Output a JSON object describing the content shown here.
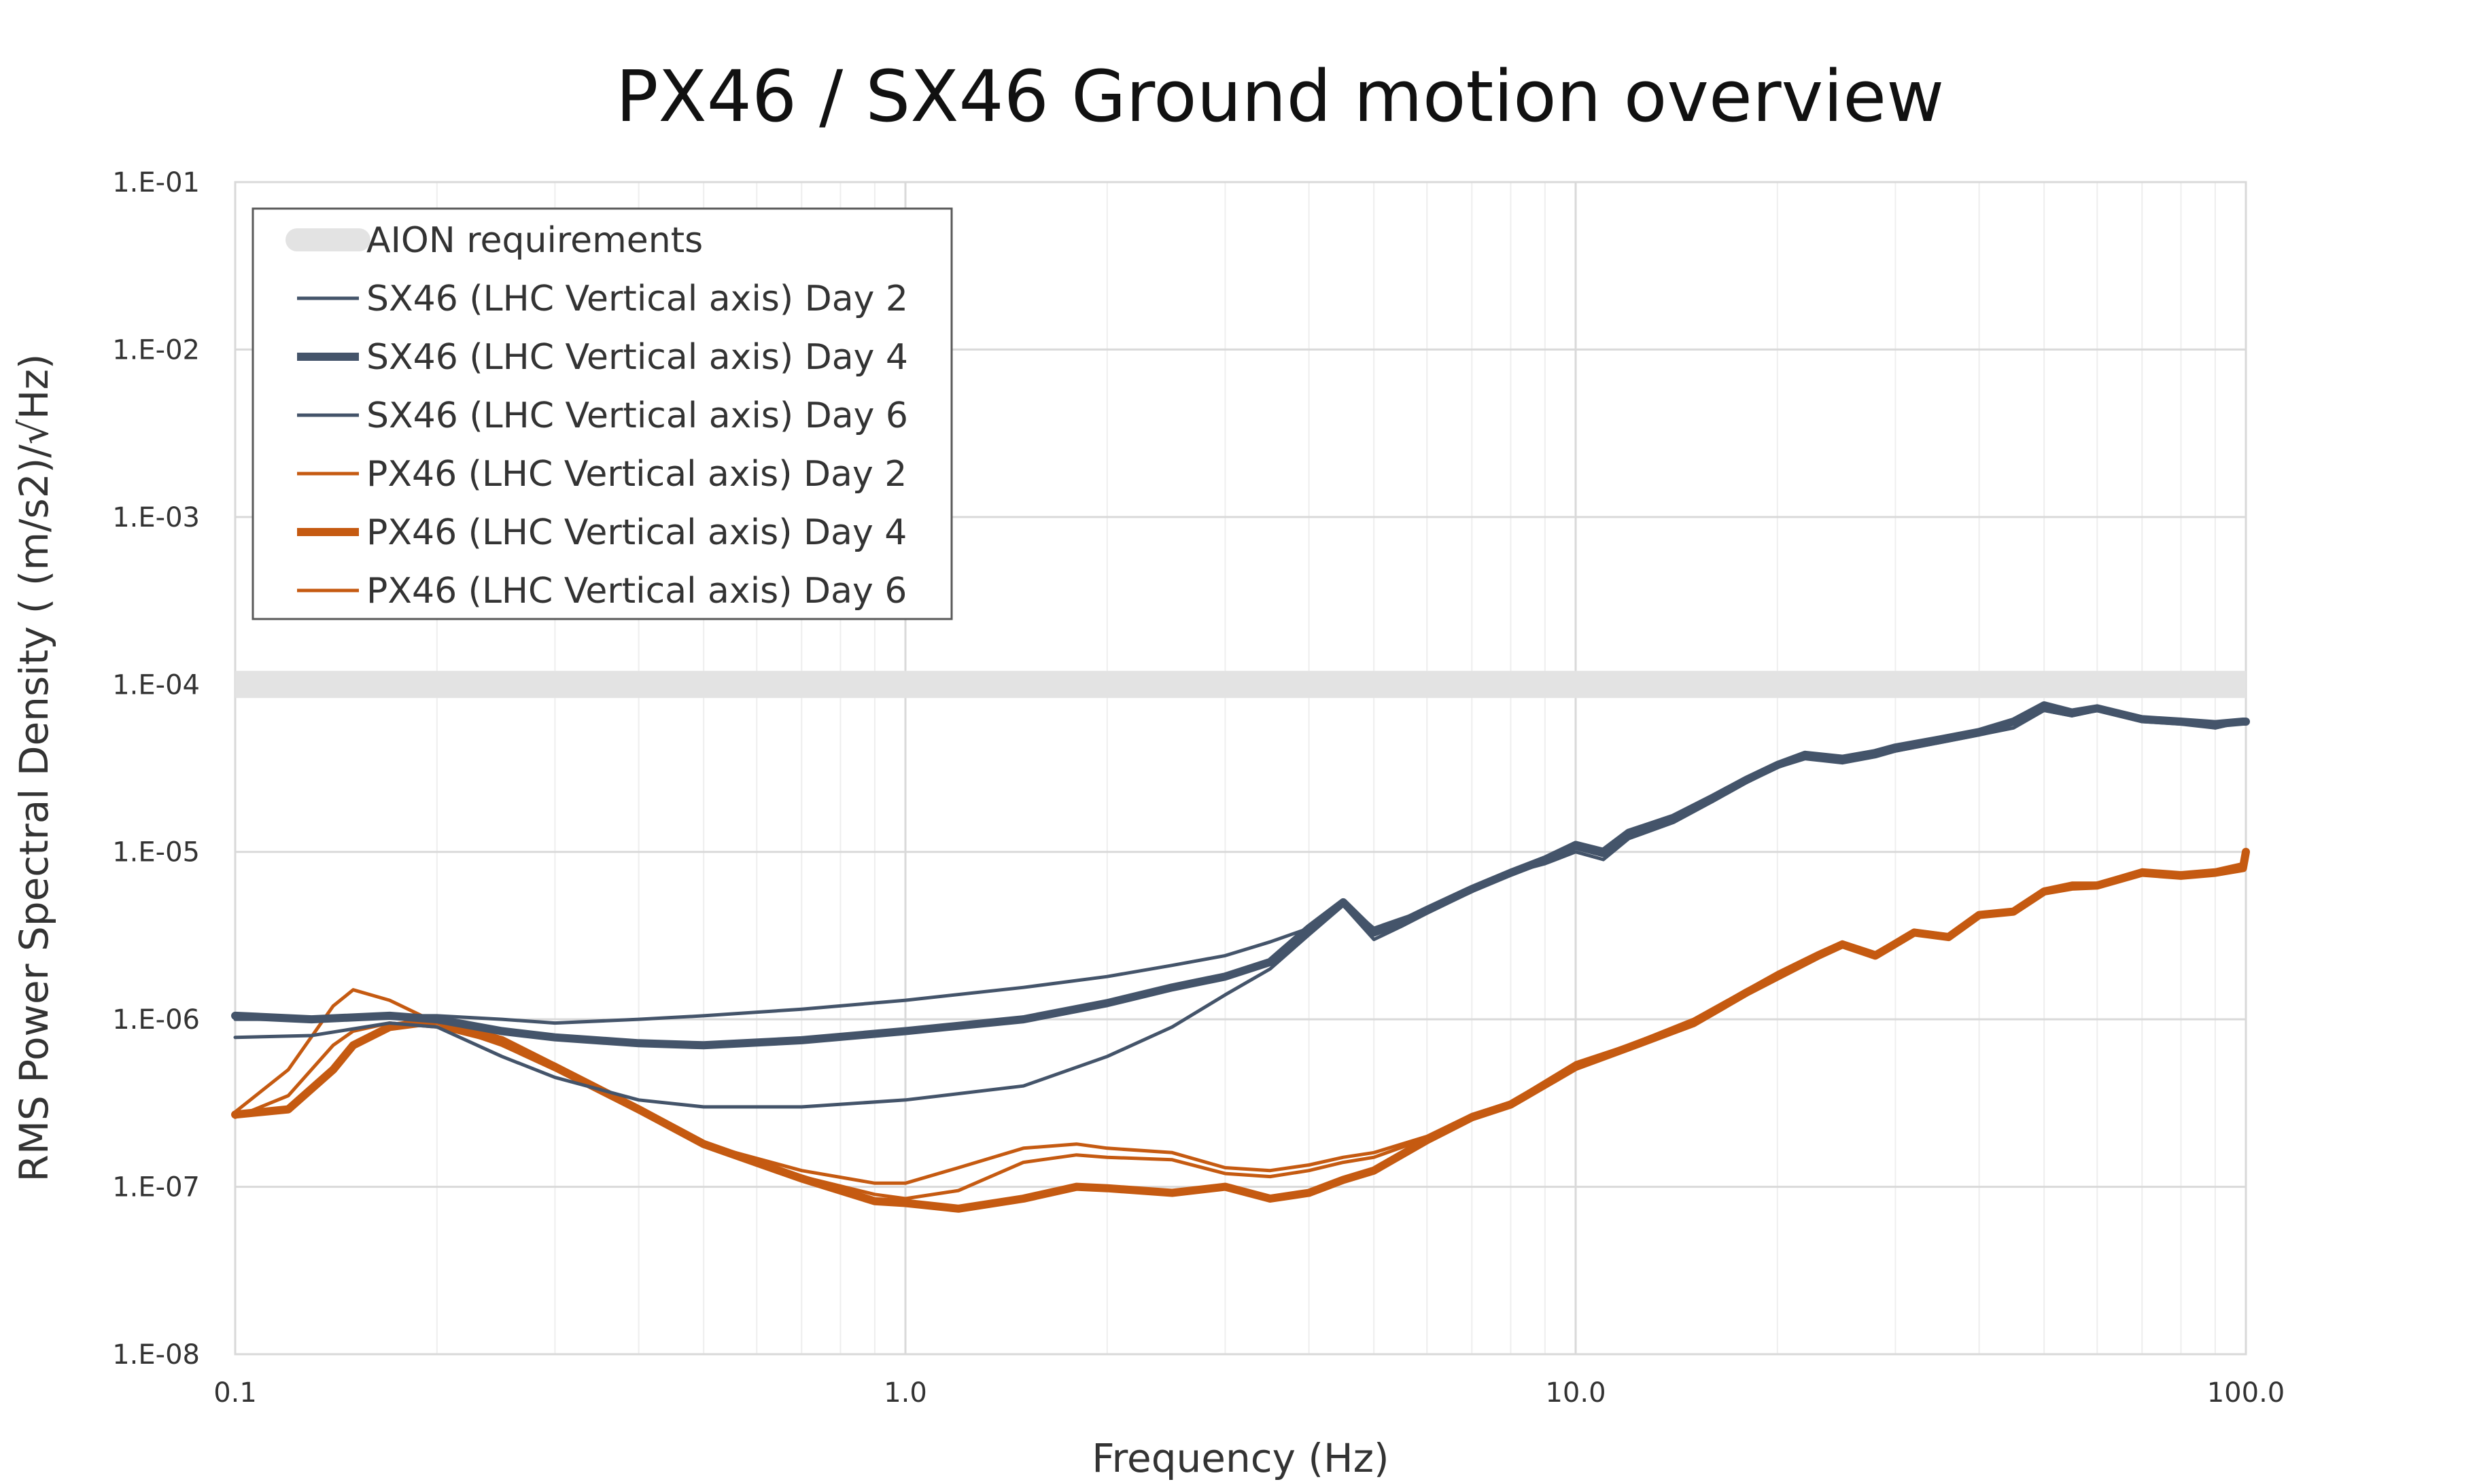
{
  "chart_data": {
    "type": "line",
    "title": "PX46 / SX46 Ground motion overview",
    "xlabel": "Frequency  (Hz)",
    "ylabel": "RMS Power Spectral Density  (  (m/s2)/√Hz)",
    "x_scale": "log",
    "y_scale": "log",
    "xlim": [
      0.1,
      100
    ],
    "ylim": [
      1e-08,
      0.1
    ],
    "x_ticks": [
      0.1,
      1,
      10,
      100
    ],
    "x_tick_labels": [
      "0.1",
      "1.0",
      "10.0",
      "100.0"
    ],
    "y_ticks": [
      0.1,
      0.01,
      0.001,
      0.0001,
      1e-05,
      1e-06,
      1e-07,
      1e-08
    ],
    "y_tick_labels": [
      "1.E-01",
      "1.E-02",
      "1.E-03",
      "1.E-04",
      "1.E-05",
      "1.E-06",
      "1.E-07",
      "1.E-08"
    ],
    "grid": true,
    "legend_position": "top-left",
    "colors": {
      "sx": "#44546a",
      "px": "#c55a11",
      "requirement": "#e3e3e3"
    },
    "series": [
      {
        "name": "AION requirements",
        "color": "#e3e3e3",
        "style": "band",
        "x": [
          0.1,
          100
        ],
        "y": [
          0.0001,
          0.0001
        ]
      },
      {
        "name": "SX46 (LHC Vertical axis) Day 2",
        "color": "#44546a",
        "style": "thin",
        "x": [
          0.1,
          0.13,
          0.17,
          0.2,
          0.25,
          0.3,
          0.4,
          0.5,
          0.7,
          1.0,
          1.5,
          2.0,
          2.5,
          3.0,
          3.5,
          4.0,
          4.5,
          5.0,
          5.5,
          6.0,
          7.0,
          8.0,
          9.0,
          10.0,
          11.0,
          12.0,
          14.0,
          16.0,
          18.0,
          20.0,
          22.0,
          25.0,
          28.0,
          30.0,
          35.0,
          40.0,
          45.0,
          50.0,
          55.0,
          60.0,
          70.0,
          80.0,
          90.0,
          99.0,
          100.0
        ],
        "y": [
          1e-06,
          1e-06,
          1.05e-06,
          1.05e-06,
          1e-06,
          9.5e-07,
          1e-06,
          1.05e-06,
          1.15e-06,
          1.3e-06,
          1.55e-06,
          1.8e-06,
          2.1e-06,
          2.4e-06,
          2.9e-06,
          3.5e-06,
          5e-06,
          3.5e-06,
          4e-06,
          4.5e-06,
          6e-06,
          7.5e-06,
          8.5e-06,
          1e-05,
          9e-06,
          1.2e-05,
          1.5e-05,
          2e-05,
          2.6e-05,
          3.2e-05,
          3.7e-05,
          3.5e-05,
          3.8e-05,
          4e-05,
          4.5e-05,
          5e-05,
          5.5e-05,
          7e-05,
          6.5e-05,
          7e-05,
          6e-05,
          6e-05,
          5.5e-05,
          6e-05,
          6e-05
        ]
      },
      {
        "name": "SX46 (LHC Vertical axis) Day 4",
        "color": "#44546a",
        "style": "thick",
        "x": [
          0.1,
          0.13,
          0.17,
          0.2,
          0.25,
          0.3,
          0.4,
          0.5,
          0.7,
          1.0,
          1.5,
          2.0,
          2.5,
          3.0,
          3.5,
          4.0,
          4.5,
          5.0,
          5.5,
          6.0,
          7.0,
          8.0,
          9.0,
          10.0,
          11.0,
          12.0,
          14.0,
          16.0,
          18.0,
          20.0,
          22.0,
          25.0,
          28.0,
          30.0,
          35.0,
          40.0,
          45.0,
          50.0,
          55.0,
          60.0,
          70.0,
          80.0,
          90.0,
          99.0,
          100.0
        ],
        "y": [
          1.05e-06,
          1e-06,
          1.05e-06,
          1e-06,
          8.5e-07,
          7.8e-07,
          7.2e-07,
          7e-07,
          7.5e-07,
          8.5e-07,
          1e-06,
          1.25e-06,
          1.55e-06,
          1.8e-06,
          2.2e-06,
          3.5e-06,
          5e-06,
          3.3e-06,
          3.8e-06,
          4.5e-06,
          6e-06,
          7.5e-06,
          9e-06,
          1.1e-05,
          1e-05,
          1.3e-05,
          1.6e-05,
          2.1e-05,
          2.7e-05,
          3.3e-05,
          3.8e-05,
          3.6e-05,
          3.9e-05,
          4.2e-05,
          4.7e-05,
          5.2e-05,
          6e-05,
          7.5e-05,
          6.8e-05,
          7.2e-05,
          6.2e-05,
          6e-05,
          5.8e-05,
          6e-05,
          6e-05
        ]
      },
      {
        "name": "SX46 (LHC Vertical axis) Day 6",
        "color": "#44546a",
        "style": "thin",
        "x": [
          0.1,
          0.13,
          0.17,
          0.2,
          0.25,
          0.3,
          0.4,
          0.5,
          0.7,
          1.0,
          1.5,
          2.0,
          2.5,
          3.0,
          3.5,
          4.0,
          4.5,
          5.0,
          5.5,
          6.0,
          7.0,
          8.0,
          9.0,
          10.0,
          11.0,
          12.0,
          14.0,
          16.0,
          18.0,
          20.0,
          22.0,
          25.0,
          28.0,
          30.0,
          35.0,
          40.0,
          45.0,
          50.0,
          55.0,
          60.0,
          70.0,
          80.0,
          90.0,
          99.0,
          100.0
        ],
        "y": [
          7.8e-07,
          8e-07,
          9.5e-07,
          9e-07,
          6e-07,
          4.5e-07,
          3.3e-07,
          3e-07,
          3e-07,
          3.3e-07,
          4e-07,
          6e-07,
          9e-07,
          1.4e-06,
          2e-06,
          3.2e-06,
          4.8e-06,
          3e-06,
          3.6e-06,
          4.3e-06,
          5.8e-06,
          7.3e-06,
          8.8e-06,
          1.05e-05,
          9.5e-06,
          1.25e-05,
          1.55e-05,
          2e-05,
          2.6e-05,
          3.2e-05,
          3.6e-05,
          3.4e-05,
          3.7e-05,
          4e-05,
          4.5e-05,
          5e-05,
          5.8e-05,
          7e-05,
          6.5e-05,
          7e-05,
          6e-05,
          5.8e-05,
          5.5e-05,
          6e-05,
          6e-05
        ]
      },
      {
        "name": "PX46 (LHC Vertical axis) Day 2",
        "color": "#c55a11",
        "style": "thin",
        "x": [
          0.1,
          0.12,
          0.14,
          0.15,
          0.17,
          0.2,
          0.25,
          0.3,
          0.4,
          0.5,
          0.7,
          0.9,
          1.0,
          1.2,
          1.5,
          1.8,
          2.0,
          2.5,
          3.0,
          3.5,
          4.0,
          4.5,
          5.0,
          6.0,
          7.0,
          8.0,
          10.0,
          12.0,
          15.0,
          18.0,
          20.0,
          23.0,
          25.0,
          28.0,
          32.0,
          36.0,
          40.0,
          45.0,
          50.0,
          55.0,
          60.0,
          70.0,
          80.0,
          90.0,
          99.0,
          100.0
        ],
        "y": [
          2.8e-07,
          5e-07,
          1.2e-06,
          1.5e-06,
          1.3e-06,
          9.5e-07,
          7e-07,
          5e-07,
          2.8e-07,
          1.8e-07,
          1.25e-07,
          1.05e-07,
          1.05e-07,
          1.3e-07,
          1.7e-07,
          1.8e-07,
          1.7e-07,
          1.6e-07,
          1.3e-07,
          1.25e-07,
          1.35e-07,
          1.5e-07,
          1.6e-07,
          2e-07,
          2.7e-07,
          3.2e-07,
          5.5e-07,
          7e-07,
          1e-06,
          1.5e-06,
          1.9e-06,
          2.5e-06,
          2.9e-06,
          2.5e-06,
          3.4e-06,
          3.2e-06,
          4.3e-06,
          4.5e-06,
          6e-06,
          6.5e-06,
          6.5e-06,
          7.8e-06,
          7.5e-06,
          7.8e-06,
          8.5e-06,
          1e-05
        ]
      },
      {
        "name": "PX46 (LHC Vertical axis) Day 4",
        "color": "#c55a11",
        "style": "thick",
        "x": [
          0.1,
          0.12,
          0.14,
          0.15,
          0.17,
          0.2,
          0.25,
          0.3,
          0.4,
          0.5,
          0.7,
          0.9,
          1.0,
          1.2,
          1.5,
          1.8,
          2.0,
          2.5,
          3.0,
          3.5,
          4.0,
          4.5,
          5.0,
          6.0,
          7.0,
          8.0,
          10.0,
          12.0,
          15.0,
          18.0,
          20.0,
          23.0,
          25.0,
          28.0,
          32.0,
          36.0,
          40.0,
          45.0,
          50.0,
          55.0,
          60.0,
          70.0,
          80.0,
          90.0,
          99.0,
          100.0
        ],
        "y": [
          2.7e-07,
          2.9e-07,
          5e-07,
          7e-07,
          9e-07,
          9.8e-07,
          7.5e-07,
          5.2e-07,
          2.9e-07,
          1.8e-07,
          1.12e-07,
          8.2e-08,
          8e-08,
          7.4e-08,
          8.5e-08,
          1e-07,
          9.8e-08,
          9.2e-08,
          1e-07,
          8.5e-08,
          9.2e-08,
          1.1e-07,
          1.25e-07,
          1.9e-07,
          2.6e-07,
          3.1e-07,
          5.2e-07,
          6.8e-07,
          9.5e-07,
          1.45e-06,
          1.8e-06,
          2.4e-06,
          2.8e-06,
          2.4e-06,
          3.3e-06,
          3.1e-06,
          4.2e-06,
          4.4e-06,
          5.8e-06,
          6.2e-06,
          6.3e-06,
          7.5e-06,
          7.2e-06,
          7.5e-06,
          8e-06,
          1e-05
        ]
      },
      {
        "name": "PX46 (LHC Vertical axis) Day 6",
        "color": "#c55a11",
        "style": "thin",
        "x": [
          0.1,
          0.12,
          0.14,
          0.15,
          0.17,
          0.2,
          0.25,
          0.3,
          0.4,
          0.5,
          0.7,
          0.9,
          1.0,
          1.2,
          1.5,
          1.8,
          2.0,
          2.5,
          3.0,
          3.5,
          4.0,
          4.5,
          5.0,
          6.0,
          7.0,
          8.0,
          10.0,
          12.0,
          15.0,
          18.0,
          20.0,
          23.0,
          25.0,
          28.0,
          32.0,
          36.0,
          40.0,
          45.0,
          50.0,
          55.0,
          60.0,
          70.0,
          80.0,
          90.0,
          99.0,
          100.0
        ],
        "y": [
          2.6e-07,
          3.5e-07,
          7e-07,
          8.5e-07,
          9.5e-07,
          9e-07,
          7.2e-07,
          5.4e-07,
          3e-07,
          1.85e-07,
          1.15e-07,
          9e-08,
          8.5e-08,
          9.5e-08,
          1.4e-07,
          1.55e-07,
          1.5e-07,
          1.45e-07,
          1.2e-07,
          1.15e-07,
          1.25e-07,
          1.4e-07,
          1.5e-07,
          1.95e-07,
          2.65e-07,
          3.15e-07,
          5.4e-07,
          6.9e-07,
          9.8e-07,
          1.48e-06,
          1.85e-06,
          2.45e-06,
          2.85e-06,
          2.45e-06,
          3.35e-06,
          3.15e-06,
          4.25e-06,
          4.45e-06,
          5.9e-06,
          6.3e-06,
          6.4e-06,
          7.6e-06,
          7.3e-06,
          7.6e-06,
          8.2e-06,
          1e-05
        ]
      }
    ]
  }
}
